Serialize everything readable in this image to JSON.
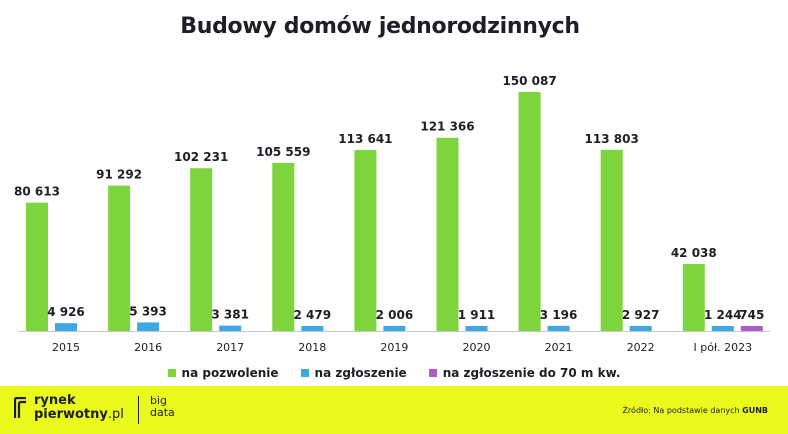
{
  "chart_data": {
    "type": "bar",
    "title": "Budowy domów jednorodzinnych",
    "categories": [
      "2015",
      "2016",
      "2017",
      "2018",
      "2019",
      "2020",
      "2021",
      "2022",
      "I pół. 2023"
    ],
    "series": [
      {
        "name": "na pozwolenie",
        "color": "#7ed43c",
        "values": [
          80613,
          91292,
          102231,
          105559,
          113641,
          121366,
          150087,
          113803,
          42038
        ],
        "labels": [
          "80 613",
          "91 292",
          "102 231",
          "105 559",
          "113 641",
          "121 366",
          "150 087",
          "113 803",
          "42 038"
        ]
      },
      {
        "name": "na zgłoszenie",
        "color": "#3ea8e6",
        "values": [
          4926,
          5393,
          3381,
          2479,
          2006,
          1911,
          3196,
          2927,
          1244
        ],
        "labels": [
          "4 926",
          "5 393",
          "3 381",
          "2 479",
          "2 006",
          "1 911",
          "3 196",
          "2 927",
          "1 244"
        ]
      },
      {
        "name": "na zgłoszenie do 70 m kw.",
        "color": "#b05cc8",
        "values": [
          null,
          null,
          null,
          null,
          null,
          null,
          null,
          null,
          745
        ],
        "labels": [
          "",
          "",
          "",
          "",
          "",
          "",
          "",
          "",
          "745"
        ]
      }
    ],
    "ylim": [
      0,
      150087
    ],
    "grid": false,
    "legend": "bottom"
  },
  "footer": {
    "logo_line1": "rynek",
    "logo_line2_bold": "pierwotny",
    "logo_line2_light": ".pl",
    "bigdata_line1": "big",
    "bigdata_line2": "data",
    "source_prefix": "Źródło: Na podstawie danych ",
    "source_bold": "GUNB"
  },
  "colors": {
    "accent": "#e9fa1c",
    "text": "#1e1e28"
  }
}
